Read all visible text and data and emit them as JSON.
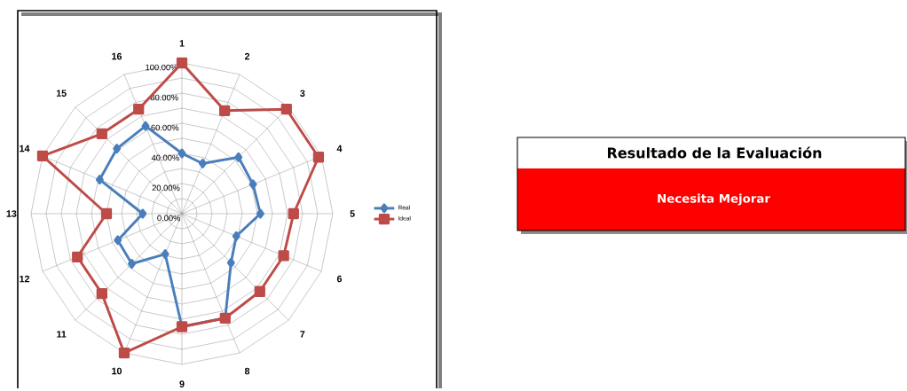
{
  "chart_data": [
    {
      "type": "radar",
      "categories": [
        "1",
        "2",
        "3",
        "4",
        "5",
        "6",
        "7",
        "8",
        "9",
        "10",
        "11",
        "12",
        "13",
        "14",
        "15",
        "16"
      ],
      "series": [
        {
          "name": "Real",
          "color": "#4a7ebb",
          "marker": "diamond",
          "values": [
            40,
            36,
            53,
            51,
            52,
            39,
            46,
            75,
            75,
            29,
            47,
            46,
            26,
            59,
            61,
            63
          ]
        },
        {
          "name": "Ideal",
          "color": "#be4b48",
          "marker": "square",
          "values": [
            100,
            74,
            98,
            98,
            74,
            73,
            73,
            75,
            75,
            100,
            75,
            75,
            50,
            100,
            75,
            75
          ]
        }
      ],
      "ylim": [
        0,
        100
      ],
      "yticks": [
        {
          "value": 0,
          "label": "0.00%"
        },
        {
          "value": 20,
          "label": "20.00%"
        },
        {
          "value": 40,
          "label": "40.00%"
        },
        {
          "value": 60,
          "label": "60.00%"
        },
        {
          "value": 80,
          "label": "80.00%"
        },
        {
          "value": 100,
          "label": "100.00%"
        }
      ],
      "grid": true,
      "legend": "right",
      "line_style": "solid"
    },
    {
      "type": "other",
      "title": "Resultado de la Evaluación",
      "annotations": [
        "Necesita Mejorar"
      ],
      "color": "#ff0000"
    }
  ]
}
